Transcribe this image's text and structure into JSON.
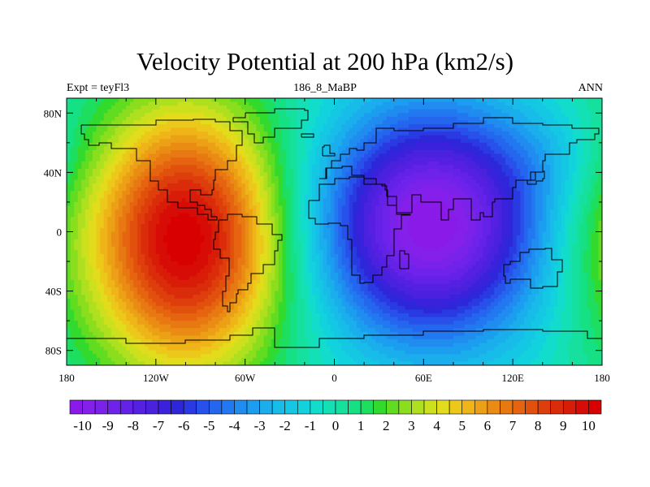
{
  "chart_data": {
    "type": "heatmap",
    "title": "Velocity Potential at 200 hPa (km2/s)",
    "subtitle_left": "Expt = teyFl3",
    "subtitle_center": "186_8_MaBP",
    "subtitle_right": "ANN",
    "xlim": [
      -180,
      180
    ],
    "ylim": [
      -90,
      90
    ],
    "x_ticks": [
      {
        "value": -180,
        "label": "180"
      },
      {
        "value": -120,
        "label": "120W"
      },
      {
        "value": -60,
        "label": "60W"
      },
      {
        "value": 0,
        "label": "0"
      },
      {
        "value": 60,
        "label": "60E"
      },
      {
        "value": 120,
        "label": "120E"
      },
      {
        "value": 180,
        "label": "180"
      }
    ],
    "y_ticks": [
      {
        "value": 80,
        "label": "80N"
      },
      {
        "value": 40,
        "label": "40N"
      },
      {
        "value": 0,
        "label": "0"
      },
      {
        "value": -40,
        "label": "40S"
      },
      {
        "value": -80,
        "label": "80S"
      }
    ],
    "features": [
      {
        "name": "maximum",
        "lon": -100,
        "lat": -5,
        "value": 10.5
      },
      {
        "name": "minimum",
        "lon": 65,
        "lat": 5,
        "value": -10.5
      }
    ],
    "colorbar": {
      "levels": [
        -10.5,
        -10,
        -9.5,
        -9,
        -8.5,
        -8,
        -7.5,
        -7,
        -6.5,
        -6,
        -5.5,
        -5,
        -4.5,
        -4,
        -3.5,
        -3,
        -2.5,
        -2,
        -1.5,
        -1,
        -0.5,
        0,
        0.5,
        1,
        1.5,
        2,
        2.5,
        3,
        3.5,
        4,
        4.5,
        5,
        5.5,
        6,
        6.5,
        7,
        7.5,
        8,
        8.5,
        9,
        9.5,
        10,
        10.5
      ],
      "labels": [
        "-10",
        "-9",
        "-8",
        "-7",
        "-6",
        "-5",
        "-4",
        "-3",
        "-2",
        "-1",
        "0",
        "1",
        "2",
        "3",
        "4",
        "5",
        "6",
        "7",
        "8",
        "9",
        "10"
      ],
      "colors": [
        "#8a1ae8",
        "#8420ea",
        "#7a22ea",
        "#6e22ea",
        "#6322e6",
        "#5520e2",
        "#4a22de",
        "#3a22dc",
        "#2e26d9",
        "#2a3ae2",
        "#2850ea",
        "#2466ee",
        "#2278f0",
        "#208cf0",
        "#1c9ef0",
        "#1aaeec",
        "#18bce8",
        "#14c8e4",
        "#12d2de",
        "#12dccc",
        "#14e0b6",
        "#16e09e",
        "#16e084",
        "#1ede60",
        "#32da2e",
        "#62dc20",
        "#8ade1e",
        "#aee020",
        "#cce01e",
        "#e2dc1c",
        "#ecc81a",
        "#eeb418",
        "#eca016",
        "#ea8c14",
        "#e87812",
        "#e66410",
        "#e2500e",
        "#de3e0c",
        "#da2c0a",
        "#d81c08",
        "#d80c06",
        "#d80000"
      ]
    },
    "coastline": "approximate continental outlines on a grid-resolution land mask"
  }
}
